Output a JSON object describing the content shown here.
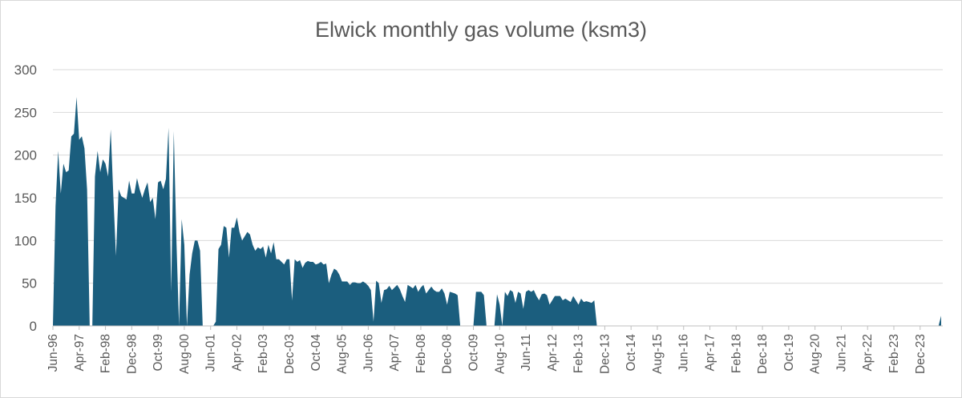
{
  "chart_data": {
    "type": "area",
    "title": "Elwick monthly gas volume (ksm3)",
    "xlabel": "",
    "ylabel": "",
    "ylim": [
      0,
      300
    ],
    "yticks": [
      0,
      50,
      100,
      150,
      200,
      250,
      300
    ],
    "grid": true,
    "legend": "none",
    "color": "#1b5e7e",
    "x_start": "Jun-96",
    "x_end": "Aug-24",
    "x_tick_labels": [
      "Jun-96",
      "Apr-97",
      "Feb-98",
      "Dec-98",
      "Oct-99",
      "Aug-00",
      "Jun-01",
      "Apr-02",
      "Feb-03",
      "Dec-03",
      "Oct-04",
      "Aug-05",
      "Jun-06",
      "Apr-07",
      "Feb-08",
      "Dec-08",
      "Oct-09",
      "Aug-10",
      "Jun-11",
      "Apr-12",
      "Feb-13",
      "Dec-13",
      "Oct-14",
      "Aug-15",
      "Jun-16",
      "Apr-17",
      "Feb-18",
      "Dec-18",
      "Oct-19",
      "Aug-20",
      "Jun-21",
      "Apr-22",
      "Feb-23",
      "Dec-23"
    ],
    "series": [
      {
        "values": [
          0,
          140,
          205,
          155,
          190,
          180,
          182,
          222,
          225,
          268,
          218,
          222,
          208,
          160,
          0,
          0,
          175,
          205,
          180,
          195,
          190,
          175,
          230,
          152,
          82,
          160,
          152,
          150,
          148,
          170,
          155,
          155,
          173,
          160,
          150,
          160,
          168,
          145,
          150,
          125,
          168,
          170,
          160,
          172,
          232,
          40,
          228,
          100,
          0,
          125,
          95,
          0,
          60,
          85,
          100,
          100,
          88,
          0,
          0,
          0,
          0,
          0,
          5,
          90,
          95,
          117,
          115,
          80,
          115,
          115,
          127,
          110,
          100,
          105,
          110,
          107,
          95,
          88,
          92,
          90,
          93,
          80,
          95,
          85,
          98,
          78,
          78,
          75,
          72,
          78,
          78,
          30,
          78,
          75,
          77,
          68,
          74,
          76,
          75,
          75,
          72,
          73,
          75,
          72,
          73,
          50,
          60,
          67,
          65,
          60,
          52,
          52,
          52,
          48,
          51,
          51,
          50,
          50,
          52,
          50,
          47,
          42,
          5,
          53,
          50,
          27,
          42,
          43,
          47,
          42,
          45,
          48,
          43,
          35,
          28,
          48,
          46,
          44,
          48,
          40,
          45,
          48,
          38,
          42,
          46,
          42,
          40,
          40,
          44,
          38,
          25,
          40,
          39,
          38,
          36,
          0,
          0,
          0,
          0,
          0,
          0,
          40,
          40,
          40,
          36,
          0,
          0,
          0,
          0,
          37,
          25,
          0,
          40,
          35,
          42,
          40,
          27,
          40,
          38,
          20,
          40,
          42,
          40,
          42,
          35,
          30,
          37,
          38,
          36,
          25,
          30,
          35,
          35,
          35,
          30,
          32,
          30,
          28,
          35,
          30,
          25,
          32,
          28,
          29,
          28,
          27,
          30,
          0,
          0,
          0,
          0,
          0,
          0,
          0,
          0,
          0,
          0,
          0,
          0,
          0,
          0,
          0,
          0,
          0,
          0,
          0,
          0,
          0,
          0,
          0,
          0,
          0,
          0,
          0,
          0,
          0,
          0,
          0,
          0,
          0,
          0,
          0,
          0,
          0,
          0,
          0,
          0,
          0,
          0,
          0,
          0,
          0,
          0,
          0,
          0,
          0,
          0,
          0,
          0,
          0,
          0,
          0,
          0,
          0,
          0,
          0,
          0,
          0,
          0,
          0,
          0,
          0,
          0,
          0,
          0,
          0,
          0,
          0,
          0,
          0,
          0,
          0,
          0,
          0,
          0,
          0,
          0,
          0,
          0,
          0,
          0,
          0,
          0,
          0,
          0,
          0,
          0,
          0,
          0,
          0,
          0,
          0,
          0,
          0,
          0,
          0,
          0,
          0,
          0,
          0,
          0,
          0,
          0,
          0,
          0,
          0,
          0,
          0,
          0,
          0,
          0,
          0,
          0,
          0,
          0,
          0,
          0,
          0,
          0,
          0,
          0,
          0,
          0,
          0,
          0,
          0,
          0,
          0,
          12
        ]
      }
    ]
  }
}
